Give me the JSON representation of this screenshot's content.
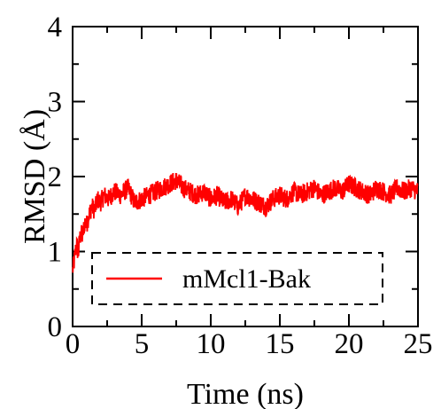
{
  "chart_data": {
    "type": "line",
    "xlabel": "Time (ns)",
    "ylabel": "RMSD (Å)",
    "xlim": [
      0,
      25
    ],
    "ylim": [
      0,
      4
    ],
    "xticks": [
      0,
      5,
      10,
      15,
      20,
      25
    ],
    "yticks": [
      0,
      1,
      2,
      3,
      4
    ],
    "xtick_labels": [
      "0",
      "5",
      "10",
      "15",
      "20",
      "25"
    ],
    "ytick_labels": [
      "0",
      "1",
      "2",
      "3",
      "4"
    ],
    "grid": false,
    "legend": {
      "position": "lower-left",
      "box": "dashed"
    },
    "series": [
      {
        "name": "mMcl1-Bak",
        "color": "#ff0000",
        "x": [
          0,
          0.1,
          0.2,
          0.3,
          0.4,
          0.5,
          0.6,
          0.7,
          0.8,
          0.9,
          1.0,
          1.2,
          1.4,
          1.6,
          1.8,
          2.0,
          2.3,
          2.6,
          3.0,
          3.5,
          4.0,
          4.5,
          5.0,
          5.5,
          6.0,
          6.5,
          7.0,
          7.5,
          8.0,
          8.5,
          9.0,
          9.5,
          10.0,
          10.5,
          11.0,
          11.5,
          12.0,
          12.5,
          13.0,
          13.5,
          14.0,
          14.5,
          15.0,
          15.5,
          16.0,
          16.5,
          17.0,
          17.5,
          18.0,
          18.5,
          19.0,
          19.5,
          20.0,
          20.5,
          21.0,
          21.5,
          22.0,
          22.5,
          23.0,
          23.5,
          24.0,
          24.5,
          25.0
        ],
        "y": [
          0.75,
          0.85,
          1.0,
          1.1,
          0.95,
          1.15,
          1.25,
          1.2,
          1.3,
          1.4,
          1.35,
          1.5,
          1.6,
          1.55,
          1.7,
          1.65,
          1.75,
          1.7,
          1.8,
          1.75,
          1.85,
          1.65,
          1.7,
          1.75,
          1.8,
          1.85,
          1.9,
          1.95,
          1.85,
          1.8,
          1.75,
          1.8,
          1.7,
          1.75,
          1.65,
          1.7,
          1.6,
          1.75,
          1.7,
          1.65,
          1.6,
          1.7,
          1.75,
          1.7,
          1.8,
          1.75,
          1.8,
          1.85,
          1.75,
          1.8,
          1.85,
          1.8,
          1.9,
          1.85,
          1.8,
          1.75,
          1.85,
          1.8,
          1.75,
          1.85,
          1.8,
          1.85,
          1.8
        ]
      }
    ]
  }
}
